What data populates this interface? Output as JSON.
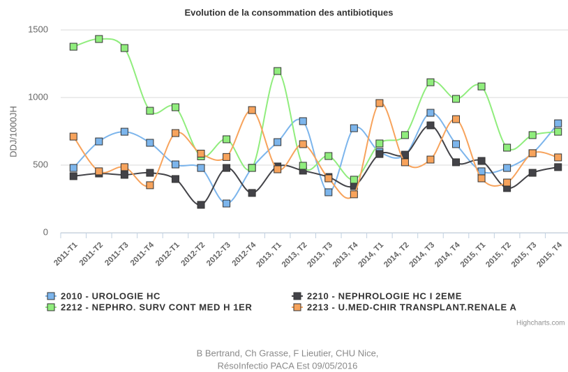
{
  "chart_data": {
    "type": "line",
    "title": "Evolution de la consommation des antibiotiques",
    "y_label": "DDJ/1000JH",
    "categories": [
      "2011-T1",
      "2011-T2",
      "2011-T3",
      "2011-T4",
      "2012-T1",
      "2012-T2",
      "2012-T3",
      "2012-T4",
      "2013, T1",
      "2013, T2",
      "2013, T3",
      "2013, T4",
      "2014, T1",
      "2014, T2",
      "2014, T3",
      "2014, T4",
      "2015, T1",
      "2015, T2",
      "2015, T3",
      "2015, T4"
    ],
    "series": [
      {
        "name": "2010 - UROLOGIE HC",
        "color": "#7cb5ec",
        "values": [
          479,
          675,
          747,
          665,
          505,
          479,
          216,
          480,
          670,
          825,
          299,
          773,
          598,
          575,
          887,
          655,
          454,
          479,
          588,
          809
        ]
      },
      {
        "name": "2210 - NEPHROLOGIE HC I 2EME",
        "color": "#434348",
        "values": [
          418,
          438,
          428,
          443,
          397,
          206,
          479,
          294,
          490,
          459,
          412,
          345,
          582,
          577,
          794,
          521,
          531,
          330,
          443,
          485
        ]
      },
      {
        "name": "2212 - NEPHRO. SURV CONT MED H 1ER",
        "color": "#90ed7d",
        "values": [
          1376,
          1433,
          1366,
          902,
          928,
          565,
          691,
          479,
          1196,
          495,
          567,
          392,
          660,
          722,
          1113,
          990,
          1082,
          629,
          722,
          747
        ]
      },
      {
        "name": "2213 - U.MED-CHIR TRANSPLANT.RENALE A",
        "color": "#f7a35c",
        "values": [
          711,
          454,
          485,
          351,
          737,
          585,
          560,
          907,
          469,
          655,
          402,
          284,
          959,
          521,
          541,
          840,
          402,
          371,
          588,
          557
        ]
      }
    ],
    "ylim": [
      0,
      1500
    ],
    "yticks": [
      0,
      500,
      1000,
      1500
    ],
    "grid": true,
    "credits": "Highcharts.com",
    "footer": [
      "B Bertrand, Ch Grasse, F Lieutier, CHU Nice,",
      "RésoInfectio PACA Est 09/05/2016"
    ]
  }
}
